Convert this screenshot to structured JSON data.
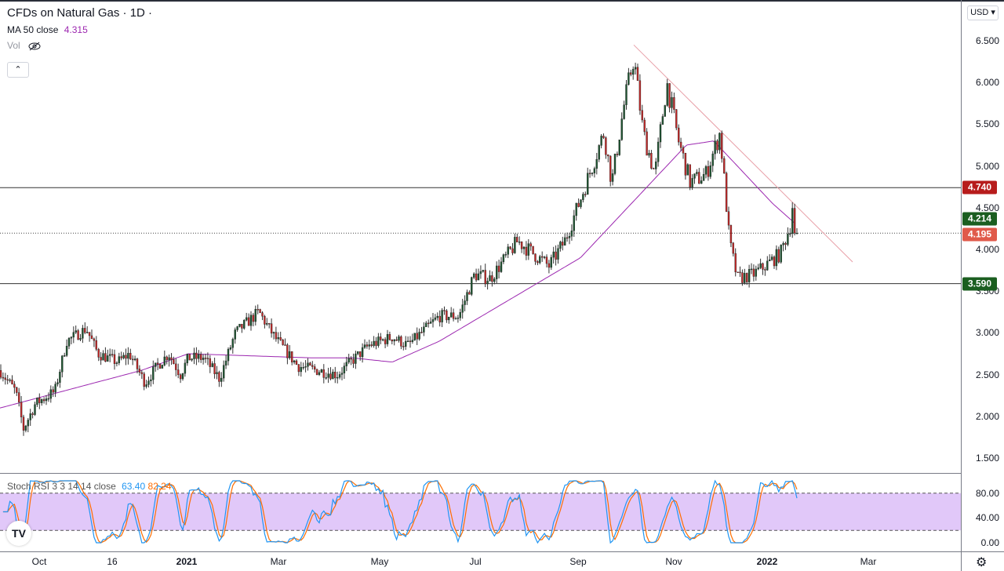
{
  "header": {
    "title": "CFDs on Natural Gas · 1D ·",
    "ma_label": "MA 50 close",
    "ma_value": "4.315",
    "vol_label": "Vol",
    "currency": "USD ▾",
    "collapse": "⌃"
  },
  "colors": {
    "up": "#26a69a",
    "up_body": "#1e5631",
    "down": "#c62828",
    "ma": "#9c27b0",
    "k": "#2196f3",
    "d": "#ff6d00",
    "band": "#e1c8f9"
  },
  "price_axis": {
    "ticks": [
      "6.500",
      "6.000",
      "5.500",
      "5.000",
      "4.500",
      "4.000",
      "3.500",
      "3.000",
      "2.500",
      "2.000",
      "1.500"
    ],
    "tick_values": [
      6.5,
      6,
      5.5,
      5,
      4.5,
      4,
      3.5,
      3,
      2.5,
      2,
      1.5
    ]
  },
  "price_tags": [
    {
      "label": "4.740",
      "value": 4.74,
      "color": "#b71c1c"
    },
    {
      "label": "4.214",
      "value": 4.214,
      "color": "#1b5e20"
    },
    {
      "label": "4.195",
      "value": 4.195,
      "color": "#e05a4a"
    },
    {
      "label": "3.590",
      "value": 3.59,
      "color": "#1b5e20"
    }
  ],
  "hlines": [
    4.74,
    4.195,
    3.59
  ],
  "time_axis": [
    "Oct",
    "16",
    "2021",
    "Mar",
    "May",
    "Jul",
    "Sep",
    "Nov",
    "2022",
    "Mar"
  ],
  "stoch": {
    "label": "Stoch RSI 3 3 14 14 close",
    "k": "63.40",
    "d": "82.24",
    "ticks": [
      "80.00",
      "40.00",
      "0.00"
    ],
    "levels": [
      80,
      20
    ]
  },
  "chart_data": {
    "type": "candlestick",
    "symbol": "CFDs on Natural Gas",
    "interval": "1D",
    "close_path": [
      [
        0,
        2.55
      ],
      [
        20,
        2.3
      ],
      [
        30,
        1.85
      ],
      [
        45,
        2.15
      ],
      [
        70,
        2.3
      ],
      [
        85,
        2.9
      ],
      [
        110,
        3.05
      ],
      [
        125,
        2.75
      ],
      [
        150,
        2.65
      ],
      [
        165,
        2.75
      ],
      [
        185,
        2.4
      ],
      [
        200,
        2.6
      ],
      [
        215,
        2.75
      ],
      [
        230,
        2.5
      ],
      [
        240,
        2.7
      ],
      [
        260,
        2.7
      ],
      [
        280,
        2.45
      ],
      [
        300,
        3.0
      ],
      [
        330,
        3.25
      ],
      [
        350,
        2.95
      ],
      [
        380,
        2.6
      ],
      [
        430,
        2.5
      ],
      [
        470,
        2.85
      ],
      [
        500,
        2.95
      ],
      [
        520,
        2.85
      ],
      [
        560,
        3.2
      ],
      [
        585,
        3.2
      ],
      [
        605,
        3.7
      ],
      [
        625,
        3.65
      ],
      [
        660,
        4.1
      ],
      [
        700,
        3.8
      ],
      [
        720,
        4.1
      ],
      [
        740,
        4.6
      ],
      [
        770,
        5.4
      ],
      [
        780,
        4.8
      ],
      [
        795,
        5.7
      ],
      [
        808,
        6.3
      ],
      [
        820,
        5.4
      ],
      [
        835,
        4.9
      ],
      [
        850,
        6.0
      ],
      [
        865,
        5.3
      ],
      [
        880,
        4.8
      ],
      [
        900,
        4.9
      ],
      [
        918,
        5.4
      ],
      [
        930,
        4.1
      ],
      [
        940,
        3.65
      ],
      [
        960,
        3.7
      ],
      [
        975,
        3.8
      ],
      [
        995,
        3.95
      ],
      [
        1008,
        4.3
      ],
      [
        1012,
        4.7
      ],
      [
        1016,
        4.195
      ]
    ],
    "ma_path": [
      [
        0,
        2.1
      ],
      [
        180,
        2.55
      ],
      [
        240,
        2.75
      ],
      [
        400,
        2.7
      ],
      [
        450,
        2.7
      ],
      [
        500,
        2.65
      ],
      [
        560,
        2.9
      ],
      [
        650,
        3.4
      ],
      [
        740,
        3.9
      ],
      [
        820,
        4.7
      ],
      [
        875,
        5.25
      ],
      [
        910,
        5.3
      ],
      [
        950,
        4.9
      ],
      [
        985,
        4.55
      ],
      [
        1015,
        4.3
      ]
    ],
    "trendline": [
      [
        808,
        6.45
      ],
      [
        1087,
        3.85
      ]
    ],
    "ylim": [
      1.3,
      6.75
    ]
  }
}
